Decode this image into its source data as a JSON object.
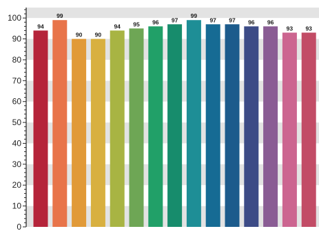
{
  "chart_data": {
    "type": "bar",
    "title": "",
    "xlabel": "",
    "ylabel": "",
    "ylim": [
      0,
      105
    ],
    "yticks": [
      0,
      10,
      20,
      30,
      40,
      50,
      60,
      70,
      80,
      90,
      100
    ],
    "grid": "horizontal-bands",
    "legend": "none",
    "values": [
      94,
      99,
      90,
      90,
      94,
      95,
      96,
      97,
      99,
      97,
      97,
      96,
      96,
      93,
      93
    ],
    "data_labels": [
      "94",
      "99",
      "90",
      "90",
      "94",
      "95",
      "96",
      "97",
      "99",
      "97",
      "97",
      "96",
      "96",
      "93",
      "93"
    ],
    "colors": [
      "#b5243a",
      "#e8744a",
      "#e19a38",
      "#d8b040",
      "#a8b443",
      "#6ea655",
      "#21a068",
      "#178c6c",
      "#1e8e96",
      "#166b94",
      "#1c5b8c",
      "#3c4b86",
      "#8a5c94",
      "#cc6590",
      "#c24c66"
    ],
    "band_colors": [
      "#e3e3e3",
      "#ffffff"
    ]
  }
}
